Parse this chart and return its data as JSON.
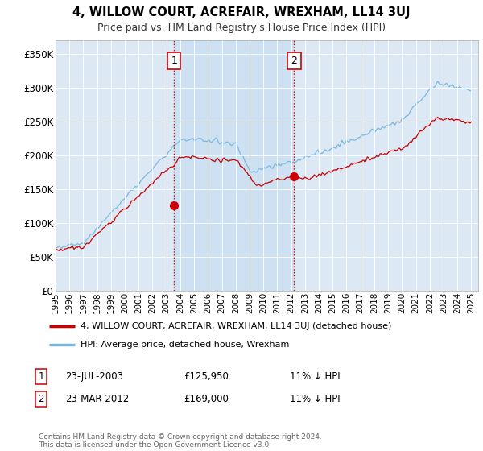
{
  "title": "4, WILLOW COURT, ACREFAIR, WREXHAM, LL14 3UJ",
  "subtitle": "Price paid vs. HM Land Registry's House Price Index (HPI)",
  "ylim": [
    0,
    370000
  ],
  "yticks": [
    0,
    50000,
    100000,
    150000,
    200000,
    250000,
    300000,
    350000
  ],
  "ytick_labels": [
    "£0",
    "£50K",
    "£100K",
    "£150K",
    "£200K",
    "£250K",
    "£300K",
    "£350K"
  ],
  "hpi_color": "#7ab8e0",
  "price_color": "#cc0000",
  "vline_color": "#cc0000",
  "bg_color": "#dce9f5",
  "shade_color": "#c5dcf0",
  "sale1_date_num": 2003.55,
  "sale1_price": 125950,
  "sale2_date_num": 2012.22,
  "sale2_price": 169000,
  "sale1_label": "23-JUL-2003",
  "sale2_label": "23-MAR-2012",
  "sale1_hpi_pct": "11% ↓ HPI",
  "sale2_hpi_pct": "11% ↓ HPI",
  "legend_line1": "4, WILLOW COURT, ACREFAIR, WREXHAM, LL14 3UJ (detached house)",
  "legend_line2": "HPI: Average price, detached house, Wrexham",
  "footer": "Contains HM Land Registry data © Crown copyright and database right 2024.\nThis data is licensed under the Open Government Licence v3.0."
}
